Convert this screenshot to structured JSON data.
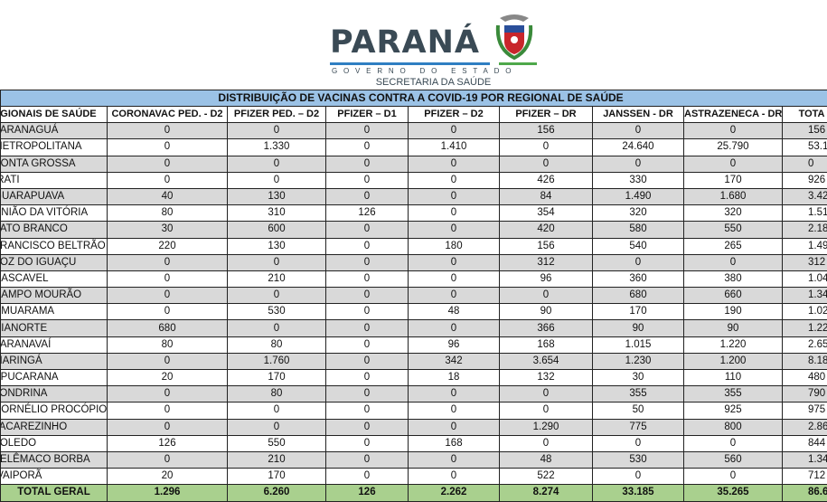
{
  "logo": {
    "brand": "PARANÁ",
    "subtitle": "GOVERNO DO ESTADO",
    "department": "SECRETARIA DA SAÚDE",
    "colors": {
      "text": "#3a4a55",
      "blue": "#2f7fc2",
      "green": "#4ea84a"
    }
  },
  "table": {
    "title": "DISTRIBUIÇÃO DE VACINAS CONTRA A COVID-19 POR REGIONAL DE SAÚDE",
    "headers": [
      "REGIONAIS DE SAÚDE",
      "CORONAVAC PED. - D2",
      "PFIZER PED.  – D2",
      "PFIZER – D1",
      "PFIZER – D2",
      "PFIZER – DR",
      "JANSSEN - DR",
      "ASTRAZENECA - DR",
      "TOTA"
    ],
    "rows": [
      [
        "PARANAGUÁ",
        "0",
        "0",
        "0",
        "0",
        "156",
        "0",
        "0",
        "156"
      ],
      [
        "METROPOLITANA",
        "0",
        "1.330",
        "0",
        "1.410",
        "0",
        "24.640",
        "25.790",
        "53.17"
      ],
      [
        "PONTA GROSSA",
        "0",
        "0",
        "0",
        "0",
        "0",
        "0",
        "0",
        "0"
      ],
      [
        "IRATI",
        "0",
        "0",
        "0",
        "0",
        "426",
        "330",
        "170",
        "926"
      ],
      [
        "GUARAPUAVA",
        "40",
        "130",
        "0",
        "0",
        "84",
        "1.490",
        "1.680",
        "3.42"
      ],
      [
        "UNIÃO DA VITÓRIA",
        "80",
        "310",
        "126",
        "0",
        "354",
        "320",
        "320",
        "1.51"
      ],
      [
        "PATO BRANCO",
        "30",
        "600",
        "0",
        "0",
        "420",
        "580",
        "550",
        "2.18"
      ],
      [
        "FRANCISCO BELTRÃO",
        "220",
        "130",
        "0",
        "180",
        "156",
        "540",
        "265",
        "1.49"
      ],
      [
        "FOZ DO IGUAÇU",
        "0",
        "0",
        "0",
        "0",
        "312",
        "0",
        "0",
        "312"
      ],
      [
        "CASCAVEL",
        "0",
        "210",
        "0",
        "0",
        "96",
        "360",
        "380",
        "1.04"
      ],
      [
        "CAMPO MOURÃO",
        "0",
        "0",
        "0",
        "0",
        "0",
        "680",
        "660",
        "1.34"
      ],
      [
        "UMUARAMA",
        "0",
        "530",
        "0",
        "48",
        "90",
        "170",
        "190",
        "1.02"
      ],
      [
        "CIANORTE",
        "680",
        "0",
        "0",
        "0",
        "366",
        "90",
        "90",
        "1.22"
      ],
      [
        "PARANAVAÍ",
        "80",
        "80",
        "0",
        "96",
        "168",
        "1.015",
        "1.220",
        "2.65"
      ],
      [
        "MARINGÁ",
        "0",
        "1.760",
        "0",
        "342",
        "3.654",
        "1.230",
        "1.200",
        "8.18"
      ],
      [
        "APUCARANA",
        "20",
        "170",
        "0",
        "18",
        "132",
        "30",
        "110",
        "480"
      ],
      [
        "LONDRINA",
        "0",
        "80",
        "0",
        "0",
        "0",
        "355",
        "355",
        "790"
      ],
      [
        "CORNÉLIO PROCÓPIO",
        "0",
        "0",
        "0",
        "0",
        "0",
        "50",
        "925",
        "975"
      ],
      [
        "JACAREZINHO",
        "0",
        "0",
        "0",
        "0",
        "1.290",
        "775",
        "800",
        "2.86"
      ],
      [
        "TOLEDO",
        "126",
        "550",
        "0",
        "168",
        "0",
        "0",
        "0",
        "844"
      ],
      [
        "TELÊMACO BORBA",
        "0",
        "210",
        "0",
        "0",
        "48",
        "530",
        "560",
        "1.34"
      ],
      [
        "IVAIPORÃ",
        "20",
        "170",
        "0",
        "0",
        "522",
        "0",
        "0",
        "712"
      ]
    ],
    "total": [
      "TOTAL GERAL",
      "1.296",
      "6.260",
      "126",
      "2.262",
      "8.274",
      "33.185",
      "35.265",
      "86.6"
    ],
    "colors": {
      "title_bg": "#9bc2e6",
      "stripe": "#d9d9d9",
      "total_bg": "#a9d08e"
    }
  }
}
